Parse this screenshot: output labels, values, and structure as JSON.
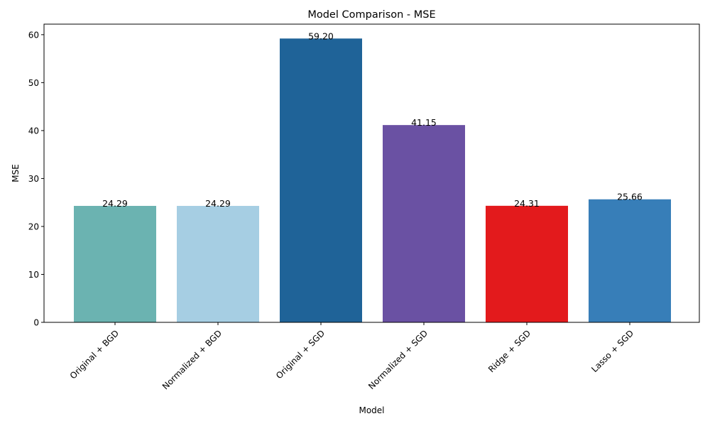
{
  "chart_data": {
    "type": "bar",
    "title": "Model Comparison - MSE",
    "xlabel": "Model",
    "ylabel": "MSE",
    "categories": [
      "Original + BGD",
      "Normalized + BGD",
      "Original + SGD",
      "Normalized + SGD",
      "Ridge + SGD",
      "Lasso + SGD"
    ],
    "values": [
      24.29,
      24.29,
      59.2,
      41.15,
      24.31,
      25.66
    ],
    "data_labels": [
      "24.29",
      "24.29",
      "59.20",
      "41.15",
      "24.31",
      "25.66"
    ],
    "colors": [
      "#6bb3b1",
      "#a6cee3",
      "#1f6398",
      "#6a51a3",
      "#e31a1c",
      "#377eb8"
    ],
    "ylim": [
      0,
      62.2
    ],
    "yticks": [
      0,
      10,
      20,
      30,
      40,
      50,
      60
    ],
    "ytick_labels": [
      "0",
      "10",
      "20",
      "30",
      "40",
      "50",
      "60"
    ],
    "grid": false,
    "legend": "none"
  }
}
